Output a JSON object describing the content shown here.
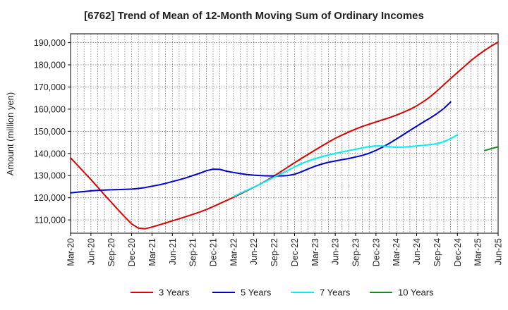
{
  "chart_data": {
    "type": "line",
    "title": "[6762]  Trend of Mean of 12-Month Moving Sum of Ordinary Incomes",
    "ylabel": "Amount (million yen)",
    "xlabel": "",
    "ylim": [
      104000,
      194000
    ],
    "yticks": [
      110000,
      120000,
      130000,
      140000,
      150000,
      160000,
      170000,
      180000,
      190000
    ],
    "ytick_labels": [
      "110,000",
      "120,000",
      "130,000",
      "140,000",
      "150,000",
      "160,000",
      "170,000",
      "180,000",
      "190,000"
    ],
    "x_start": "Mar-20",
    "x_months": 63,
    "xtick_labels": [
      "Mar-20",
      "Jun-20",
      "Sep-20",
      "Dec-20",
      "Mar-21",
      "Jun-21",
      "Sep-21",
      "Dec-21",
      "Mar-22",
      "Jun-22",
      "Sep-22",
      "Dec-22",
      "Mar-23",
      "Jun-23",
      "Sep-23",
      "Dec-23",
      "Mar-24",
      "Jun-24",
      "Sep-24",
      "Dec-24",
      "Mar-25",
      "Jun-25"
    ],
    "legend_position": "bottom",
    "series": [
      {
        "name": "3 Years",
        "color": "#dd0000",
        "start_month": 0,
        "values": [
          138000,
          134800,
          131500,
          128200,
          124800,
          121300,
          118000,
          114600,
          111300,
          108200,
          106300,
          106000,
          106800,
          107700,
          108600,
          109600,
          110500,
          111500,
          112500,
          113500,
          114700,
          116000,
          117400,
          118800,
          120200,
          121700,
          123200,
          124700,
          126300,
          128000,
          129900,
          131800,
          133800,
          135800,
          137700,
          139600,
          141500,
          143300,
          145100,
          146800,
          148300,
          149700,
          151000,
          152200,
          153200,
          154200,
          155200,
          156200,
          157300,
          158500,
          159900,
          161500,
          163400,
          165600,
          168200,
          171000,
          173800,
          176500,
          179200,
          181900,
          184300,
          186500,
          188500,
          190200
        ]
      },
      {
        "name": "5 Years",
        "color": "#0000cc",
        "start_month": 0,
        "values": [
          122200,
          122500,
          122800,
          123100,
          123300,
          123500,
          123600,
          123700,
          123800,
          123900,
          124200,
          124600,
          125200,
          125800,
          126500,
          127300,
          128100,
          129000,
          130000,
          131000,
          132200,
          132900,
          132800,
          132000,
          131400,
          130900,
          130500,
          130200,
          130000,
          129900,
          129900,
          129900,
          130000,
          130600,
          131700,
          133000,
          134200,
          135200,
          136000,
          136600,
          137200,
          137700,
          138400,
          139100,
          140100,
          141400,
          142900,
          144600,
          146500,
          148400,
          150400,
          152300,
          154200,
          156000,
          158000,
          160300,
          163200
        ]
      },
      {
        "name": "7 Years",
        "color": "#00eeee",
        "start_month": 24,
        "values": [
          120500,
          122000,
          123400,
          124800,
          126300,
          127800,
          129300,
          130800,
          132300,
          133900,
          135400,
          136600,
          137600,
          138500,
          139300,
          140000,
          140700,
          141300,
          141900,
          142500,
          143100,
          143400,
          143400,
          143000,
          142800,
          142900,
          143100,
          143400,
          143700,
          144000,
          144400,
          145300,
          146700,
          148400
        ]
      },
      {
        "name": "10 Years",
        "color": "#228822",
        "start_month": 61,
        "values": [
          141300,
          142200,
          143000
        ]
      }
    ]
  }
}
